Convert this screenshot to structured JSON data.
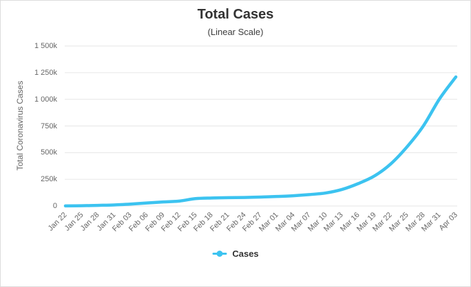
{
  "colors": {
    "line": "#3cc3f0",
    "grid": "#e6e6e6",
    "tick_text": "#666666",
    "title_text": "#333333",
    "axis_title_text": "#666666",
    "legend_text": "#333333",
    "page_border": "#dcdcdc"
  },
  "chart_data": {
    "type": "line",
    "title": "Total Cases",
    "subtitle": "(Linear Scale)",
    "xlabel": "",
    "ylabel": "Total Coronavirus Cases",
    "legend_position": "bottom",
    "grid": "horizontal",
    "ylim": [
      0,
      1500000
    ],
    "yticks": [
      {
        "value": 0,
        "label": "0"
      },
      {
        "value": 250000,
        "label": "250k"
      },
      {
        "value": 500000,
        "label": "500k"
      },
      {
        "value": 750000,
        "label": "750k"
      },
      {
        "value": 1000000,
        "label": "1 000k"
      },
      {
        "value": 1250000,
        "label": "1 250k"
      },
      {
        "value": 1500000,
        "label": "1 500k"
      }
    ],
    "categories": [
      "Jan 22",
      "Jan 25",
      "Jan 28",
      "Jan 31",
      "Feb 03",
      "Feb 06",
      "Feb 09",
      "Feb 12",
      "Feb 15",
      "Feb 18",
      "Feb 21",
      "Feb 24",
      "Feb 27",
      "Mar 01",
      "Mar 04",
      "Mar 07",
      "Mar 10",
      "Mar 13",
      "Mar 16",
      "Mar 19",
      "Mar 22",
      "Mar 25",
      "Mar 28",
      "Mar 31",
      "Apr 03"
    ],
    "series": [
      {
        "name": "Cases",
        "values": [
          1000,
          2400,
          6000,
          10000,
          18000,
          28000,
          38000,
          46000,
          69000,
          75000,
          78000,
          80000,
          84000,
          89000,
          96000,
          107000,
          122000,
          155000,
          210000,
          282000,
          395000,
          555000,
          750000,
          1005000,
          1210000
        ]
      }
    ]
  }
}
